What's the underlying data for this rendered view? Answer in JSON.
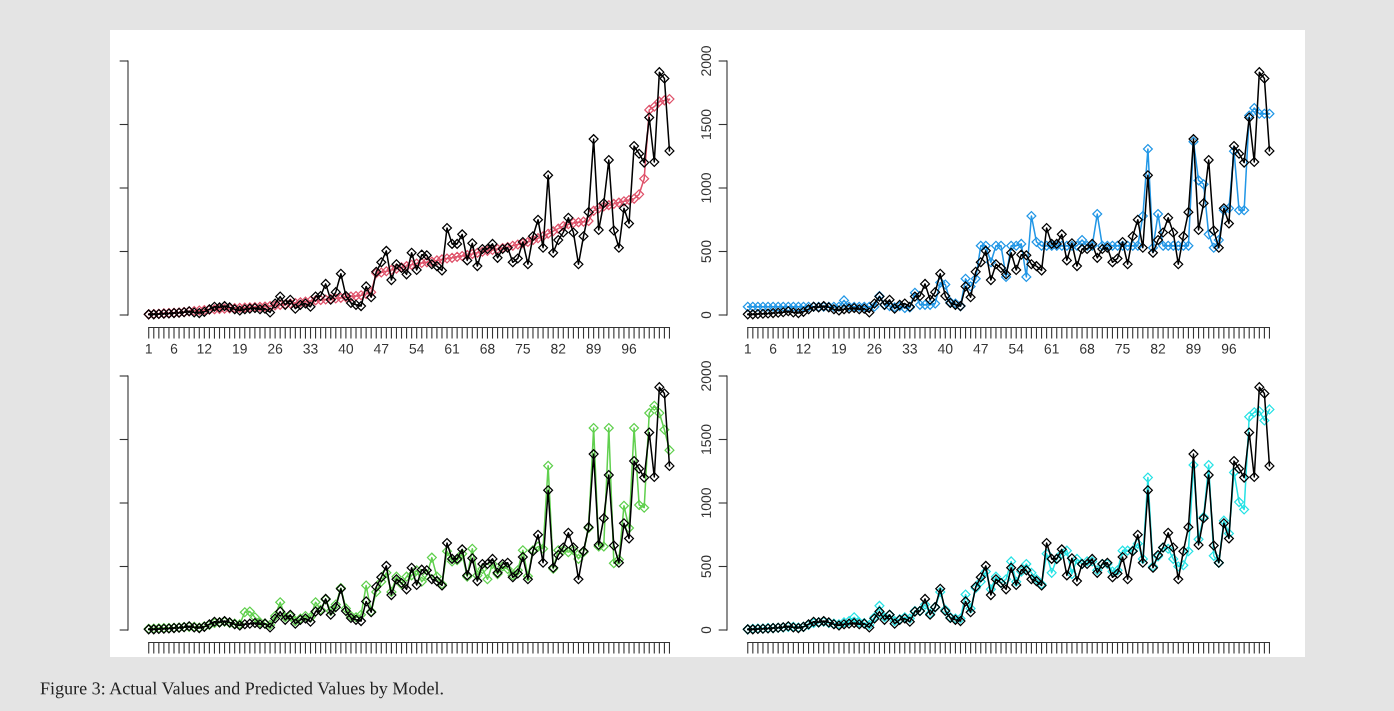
{
  "chart_data": [
    {
      "type": "line",
      "marker": "diamond",
      "line_style": "solid",
      "tick_labels": "x",
      "ylim": [
        0,
        2000
      ],
      "yticks": [
        0,
        500,
        1000,
        1500,
        2000
      ],
      "annotations": [
        "Figure 3: Actual Values and Predicted Values by Model."
      ],
      "categories": [
        "1",
        null,
        null,
        null,
        null,
        "6",
        null,
        null,
        null,
        null,
        null,
        "12",
        null,
        null,
        null,
        null,
        null,
        null,
        "19",
        null,
        null,
        null,
        null,
        null,
        null,
        "26",
        null,
        null,
        null,
        null,
        null,
        null,
        "33",
        null,
        null,
        null,
        null,
        null,
        null,
        "40",
        null,
        null,
        null,
        null,
        null,
        null,
        "47",
        null,
        null,
        null,
        null,
        null,
        null,
        "54",
        null,
        null,
        null,
        null,
        null,
        null,
        "61",
        null,
        null,
        null,
        null,
        null,
        null,
        "68",
        null,
        null,
        null,
        null,
        null,
        null,
        "75",
        null,
        null,
        null,
        null,
        null,
        null,
        "82",
        null,
        null,
        null,
        null,
        null,
        null,
        "89",
        null,
        null,
        null,
        null,
        null,
        null,
        "96",
        null,
        null,
        null,
        null,
        null,
        null,
        null,
        null
      ],
      "series": [
        {
          "color": "#df536b",
          "values": [
            5,
            8,
            10,
            13,
            15,
            18,
            20,
            24,
            28,
            32,
            35,
            38,
            42,
            45,
            48,
            50,
            52,
            54,
            56,
            58,
            60,
            62,
            64,
            66,
            70,
            75,
            80,
            85,
            90,
            95,
            100,
            105,
            110,
            115,
            118,
            122,
            126,
            130,
            135,
            140,
            145,
            150,
            155,
            165,
            180,
            330,
            335,
            345,
            355,
            365,
            375,
            385,
            395,
            405,
            410,
            415,
            420,
            430,
            438,
            445,
            450,
            458,
            465,
            472,
            480,
            490,
            498,
            505,
            512,
            520,
            528,
            535,
            545,
            555,
            565,
            575,
            590,
            605,
            620,
            640,
            660,
            680,
            700,
            715,
            725,
            730,
            735,
            740,
            820,
            840,
            855,
            865,
            875,
            885,
            895,
            905,
            915,
            950,
            1073,
            1615,
            1640,
            1680,
            1690,
            1700
          ]
        },
        {
          "color": "#000000",
          "values": [
            5,
            5,
            8,
            10,
            12,
            15,
            18,
            22,
            30,
            20,
            15,
            25,
            45,
            65,
            60,
            70,
            60,
            45,
            35,
            45,
            50,
            55,
            45,
            50,
            20,
            90,
            145,
            80,
            120,
            50,
            80,
            90,
            65,
            145,
            150,
            245,
            120,
            180,
            325,
            150,
            95,
            80,
            70,
            225,
            140,
            340,
            415,
            505,
            275,
            400,
            370,
            320,
            490,
            355,
            475,
            470,
            400,
            385,
            350,
            685,
            560,
            560,
            635,
            430,
            565,
            385,
            520,
            520,
            560,
            450,
            520,
            530,
            415,
            445,
            575,
            400,
            620,
            750,
            530,
            1100,
            490,
            590,
            650,
            765,
            650,
            400,
            620,
            810,
            1385,
            670,
            880,
            1220,
            665,
            530,
            840,
            720,
            1330,
            1270,
            1200,
            1555,
            1205,
            1912,
            1862,
            1292
          ]
        }
      ]
    },
    {
      "type": "line",
      "marker": "diamond",
      "line_style": "solid",
      "ylim": [
        0,
        2000
      ],
      "yticks": [
        0,
        500,
        1000,
        1500,
        2000
      ],
      "categories": [
        "1",
        null,
        null,
        null,
        null,
        "6",
        null,
        null,
        null,
        null,
        null,
        "12",
        null,
        null,
        null,
        null,
        null,
        null,
        "19",
        null,
        null,
        null,
        null,
        null,
        null,
        "26",
        null,
        null,
        null,
        null,
        null,
        null,
        "33",
        null,
        null,
        null,
        null,
        null,
        null,
        "40",
        null,
        null,
        null,
        null,
        null,
        null,
        "47",
        null,
        null,
        null,
        null,
        null,
        null,
        "54",
        null,
        null,
        null,
        null,
        null,
        null,
        "61",
        null,
        null,
        null,
        null,
        null,
        null,
        "68",
        null,
        null,
        null,
        null,
        null,
        null,
        "75",
        null,
        null,
        null,
        null,
        null,
        null,
        "82",
        null,
        null,
        null,
        null,
        null,
        null,
        "89",
        null,
        null,
        null,
        null,
        null,
        null,
        "96",
        null,
        null,
        null,
        null,
        null,
        null,
        null,
        null
      ],
      "series": [
        {
          "color": "#2297e6",
          "values": [
            65,
            65,
            65,
            65,
            65,
            65,
            65,
            65,
            65,
            65,
            65,
            65,
            65,
            65,
            65,
            65,
            65,
            65,
            65,
            115,
            65,
            65,
            65,
            65,
            65,
            65,
            150,
            80,
            70,
            60,
            70,
            55,
            60,
            175,
            80,
            80,
            80,
            90,
            255,
            240,
            100,
            90,
            70,
            285,
            225,
            285,
            545,
            545,
            415,
            545,
            545,
            300,
            545,
            545,
            560,
            300,
            780,
            575,
            545,
            545,
            545,
            545,
            545,
            545,
            545,
            545,
            590,
            545,
            545,
            795,
            545,
            545,
            545,
            545,
            545,
            545,
            545,
            545,
            780,
            1307,
            530,
            795,
            545,
            545,
            545,
            545,
            545,
            545,
            1365,
            1060,
            1030,
            635,
            530,
            590,
            825,
            840,
            1290,
            825,
            825,
            1570,
            1630,
            1585,
            1585,
            1585
          ]
        },
        {
          "color": "#000000",
          "values": [
            5,
            5,
            8,
            10,
            12,
            15,
            18,
            22,
            30,
            20,
            15,
            25,
            45,
            65,
            60,
            70,
            60,
            45,
            35,
            45,
            50,
            55,
            45,
            50,
            20,
            90,
            145,
            80,
            120,
            50,
            80,
            90,
            65,
            145,
            150,
            245,
            120,
            180,
            325,
            150,
            95,
            80,
            70,
            225,
            140,
            340,
            415,
            505,
            275,
            400,
            370,
            320,
            490,
            355,
            475,
            470,
            400,
            385,
            350,
            685,
            560,
            560,
            635,
            430,
            565,
            385,
            520,
            520,
            560,
            450,
            520,
            530,
            415,
            445,
            575,
            400,
            620,
            750,
            530,
            1100,
            490,
            590,
            650,
            765,
            650,
            400,
            620,
            810,
            1385,
            670,
            880,
            1220,
            665,
            530,
            840,
            720,
            1330,
            1270,
            1200,
            1555,
            1205,
            1912,
            1862,
            1292
          ]
        }
      ]
    },
    {
      "type": "line",
      "marker": "diamond",
      "line_style": "solid",
      "tick_labels": false,
      "ylim": [
        0,
        2000
      ],
      "yticks": [
        0,
        500,
        1000,
        1500,
        2000
      ],
      "categories": [
        null,
        null,
        null,
        null,
        null,
        null,
        null,
        null,
        null,
        null,
        null,
        null,
        null,
        null,
        null,
        null,
        null,
        null,
        null,
        null,
        null,
        null,
        null,
        null,
        null,
        null,
        null,
        null,
        null,
        null,
        null,
        null,
        null,
        null,
        null,
        null,
        null,
        null,
        null,
        null,
        null,
        null,
        null,
        null,
        null,
        null,
        null,
        null,
        null,
        null,
        null,
        null,
        null,
        null,
        null,
        null,
        null,
        null,
        null,
        null,
        null,
        null,
        null,
        null,
        null,
        null,
        null,
        null,
        null,
        null,
        null,
        null,
        null,
        null,
        null,
        null,
        null,
        null,
        null,
        null,
        null,
        null,
        null,
        null,
        null,
        null,
        null,
        null,
        null,
        null,
        null,
        null,
        null,
        null,
        null,
        null,
        null,
        null,
        null,
        null,
        null,
        null,
        null,
        null
      ],
      "series": [
        {
          "color": "#61d04f",
          "values": [
            10,
            12,
            14,
            15,
            16,
            18,
            20,
            24,
            25,
            25,
            20,
            30,
            40,
            55,
            60,
            65,
            55,
            50,
            45,
            140,
            145,
            100,
            60,
            50,
            40,
            110,
            219,
            100,
            110,
            70,
            90,
            110,
            100,
            219,
            160,
            240,
            150,
            200,
            330,
            170,
            110,
            100,
            120,
            350,
            146,
            300,
            380,
            450,
            300,
            420,
            360,
            420,
            430,
            470,
            380,
            430,
            570,
            420,
            360,
            620,
            540,
            550,
            600,
            420,
            640,
            430,
            480,
            400,
            520,
            440,
            500,
            480,
            430,
            470,
            628,
            423,
            628,
            657,
            640,
            1293,
            482,
            628,
            628,
            613,
            628,
            560,
            613,
            803,
            1591,
            657,
            657,
            1591,
            526,
            555,
            978,
            803,
            1591,
            984,
            963,
            1708,
            1766,
            1708,
            1577,
            1416
          ]
        },
        {
          "color": "#000000",
          "values": [
            5,
            5,
            8,
            10,
            12,
            15,
            18,
            22,
            30,
            20,
            15,
            25,
            45,
            65,
            60,
            70,
            60,
            45,
            35,
            45,
            50,
            55,
            45,
            50,
            20,
            90,
            145,
            80,
            120,
            50,
            80,
            90,
            65,
            145,
            150,
            245,
            120,
            180,
            325,
            150,
            95,
            80,
            70,
            225,
            140,
            340,
            415,
            505,
            275,
            400,
            370,
            320,
            490,
            355,
            475,
            470,
            400,
            385,
            350,
            685,
            560,
            560,
            635,
            430,
            565,
            385,
            520,
            520,
            560,
            450,
            520,
            530,
            415,
            445,
            575,
            400,
            620,
            750,
            530,
            1100,
            490,
            590,
            650,
            765,
            650,
            400,
            620,
            810,
            1385,
            670,
            880,
            1220,
            665,
            530,
            840,
            720,
            1330,
            1270,
            1200,
            1555,
            1205,
            1912,
            1862,
            1292
          ]
        }
      ]
    },
    {
      "type": "line",
      "marker": "diamond",
      "line_style": "solid",
      "tick_labels": "y",
      "ylim": [
        0,
        2000
      ],
      "yticks": [
        0,
        500,
        1000,
        1500,
        2000
      ],
      "categories": [
        null,
        null,
        null,
        null,
        null,
        null,
        null,
        null,
        null,
        null,
        null,
        null,
        null,
        null,
        null,
        null,
        null,
        null,
        null,
        null,
        null,
        null,
        null,
        null,
        null,
        null,
        null,
        null,
        null,
        null,
        null,
        null,
        null,
        null,
        null,
        null,
        null,
        null,
        null,
        null,
        null,
        null,
        null,
        null,
        null,
        null,
        null,
        null,
        null,
        null,
        null,
        null,
        null,
        null,
        null,
        null,
        null,
        null,
        null,
        null,
        null,
        null,
        null,
        null,
        null,
        null,
        null,
        null,
        null,
        null,
        null,
        null,
        null,
        null,
        null,
        null,
        null,
        null,
        null,
        null,
        null,
        null,
        null,
        null,
        null,
        null,
        null,
        null,
        null,
        null,
        null,
        null,
        null,
        null,
        null,
        null,
        null,
        null,
        null,
        null,
        null,
        null,
        null,
        null
      ],
      "series": [
        {
          "color": "#28e2e5",
          "values": [
            5,
            10,
            12,
            12,
            15,
            15,
            18,
            20,
            25,
            25,
            20,
            25,
            40,
            55,
            60,
            65,
            55,
            50,
            45,
            60,
            70,
            100,
            60,
            55,
            40,
            100,
            190,
            100,
            120,
            70,
            85,
            100,
            90,
            150,
            150,
            200,
            130,
            180,
            300,
            160,
            100,
            90,
            90,
            280,
            170,
            330,
            380,
            460,
            320,
            420,
            370,
            400,
            540,
            380,
            460,
            520,
            450,
            400,
            360,
            600,
            450,
            560,
            600,
            625,
            440,
            560,
            520,
            540,
            540,
            470,
            520,
            520,
            460,
            470,
            625,
            625,
            625,
            680,
            560,
            1200,
            500,
            580,
            650,
            640,
            560,
            500,
            510,
            620,
            1299,
            715,
            890,
            1299,
            584,
            530,
            861,
            760,
            1241,
            1007,
            949,
            1679,
            1714,
            1723,
            1650,
            1737
          ]
        },
        {
          "color": "#000000",
          "values": [
            5,
            5,
            8,
            10,
            12,
            15,
            18,
            22,
            30,
            20,
            15,
            25,
            45,
            65,
            60,
            70,
            60,
            45,
            35,
            45,
            50,
            55,
            45,
            50,
            20,
            90,
            145,
            80,
            120,
            50,
            80,
            90,
            65,
            145,
            150,
            245,
            120,
            180,
            325,
            150,
            95,
            80,
            70,
            225,
            140,
            340,
            415,
            505,
            275,
            400,
            370,
            320,
            490,
            355,
            475,
            470,
            400,
            385,
            350,
            685,
            560,
            560,
            635,
            430,
            565,
            385,
            520,
            520,
            560,
            450,
            520,
            530,
            415,
            445,
            575,
            400,
            620,
            750,
            530,
            1100,
            490,
            590,
            650,
            765,
            650,
            400,
            620,
            810,
            1385,
            670,
            880,
            1220,
            665,
            530,
            840,
            720,
            1330,
            1270,
            1200,
            1555,
            1205,
            1912,
            1862,
            1292
          ]
        }
      ]
    }
  ]
}
